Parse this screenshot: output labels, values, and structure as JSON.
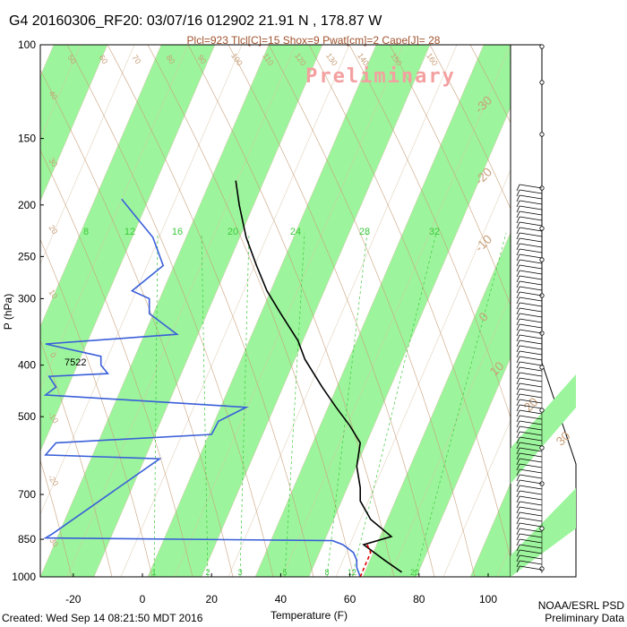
{
  "header": {
    "title": "G4 20160306_RF20: 03/07/16 012902  21.91 N , 178.87 W",
    "indices": "Plcl=923 Tlcl[C]=15 Shox=9 Pwat[cm]=2 Cape[J]= 28",
    "watermark": "Preliminary"
  },
  "footer": {
    "created": "Created: Wed Sep 14 08:21:50 MDT 2016",
    "credit_line1": "NOAA/ESRL PSD",
    "credit_line2": "Preliminary Data"
  },
  "colors": {
    "band": "#9cf59c",
    "temperature": "#000000",
    "dewpoint": "#3a5fd9",
    "parcel": "#e00000",
    "isotherm_labels": "#c8a07a",
    "mixing_ratio": "#3cc83c",
    "frame": "#000000"
  },
  "chart_data": {
    "type": "line",
    "xlabel": "Temperature (F)",
    "ylabel": "P (hPa)",
    "x_ticks": [
      "-20",
      "0",
      "20",
      "40",
      "60",
      "80",
      "100"
    ],
    "y_ticks": [
      "100",
      "150",
      "200",
      "250",
      "300",
      "400",
      "500",
      "700",
      "850",
      "1000"
    ],
    "xlim": [
      -28,
      105
    ],
    "ylim_hpa": [
      1000,
      100
    ],
    "y_scale": "log",
    "annotation": "7522",
    "isotherm_labels": [
      "50",
      "60",
      "70",
      "80",
      "90",
      "100",
      "110",
      "120",
      "130",
      "140",
      "150",
      "160",
      "40",
      "30",
      "20",
      "10",
      "0",
      "-10",
      "-20",
      "-30"
    ],
    "right_isotherm_labels": [
      "-30",
      "-20",
      "-10",
      "0",
      "10",
      "20",
      "30"
    ],
    "mixing_ratio_top_labels": [
      "8",
      "12",
      "16",
      "20",
      "24",
      "28",
      "32"
    ],
    "mixing_ratio_bottom_labels": [
      "1",
      "2",
      "3",
      "5",
      "8",
      "12",
      "20"
    ],
    "series": [
      {
        "name": "",
        "kind": "temperature",
        "points": [
          [
            75,
            980
          ],
          [
            70,
            930
          ],
          [
            64,
            870
          ],
          [
            72,
            840
          ],
          [
            66,
            780
          ],
          [
            63,
            720
          ],
          [
            63,
            680
          ],
          [
            62,
            620
          ],
          [
            63,
            560
          ],
          [
            60,
            520
          ],
          [
            56,
            480
          ],
          [
            52,
            440
          ],
          [
            47,
            390
          ],
          [
            45,
            360
          ],
          [
            40,
            320
          ],
          [
            36,
            290
          ],
          [
            33,
            260
          ],
          [
            30,
            230
          ],
          [
            28,
            200
          ],
          [
            27,
            180
          ]
        ]
      },
      {
        "name": "",
        "kind": "dewpoint",
        "points": [
          [
            63,
            1000
          ],
          [
            62,
            960
          ],
          [
            62,
            930
          ],
          [
            61,
            900
          ],
          [
            58,
            870
          ],
          [
            55,
            855
          ],
          [
            -28,
            845
          ],
          [
            -26,
            830
          ],
          [
            5,
            600
          ],
          [
            -28,
            590
          ],
          [
            -25,
            560
          ],
          [
            20,
            540
          ],
          [
            22,
            510
          ],
          [
            30,
            480
          ],
          [
            -28,
            455
          ],
          [
            -25,
            440
          ],
          [
            -27,
            420
          ],
          [
            -10,
            415
          ],
          [
            -12,
            400
          ],
          [
            -12,
            385
          ],
          [
            -28,
            365
          ],
          [
            10,
            350
          ],
          [
            2,
            320
          ],
          [
            2,
            300
          ],
          [
            -3,
            290
          ],
          [
            6,
            260
          ],
          [
            3,
            230
          ],
          [
            -2,
            210
          ],
          [
            -6,
            195
          ]
        ]
      },
      {
        "name": "",
        "kind": "parcel",
        "points": [
          [
            63,
            1000
          ],
          [
            66,
            900
          ],
          [
            65,
            870
          ]
        ]
      }
    ]
  }
}
